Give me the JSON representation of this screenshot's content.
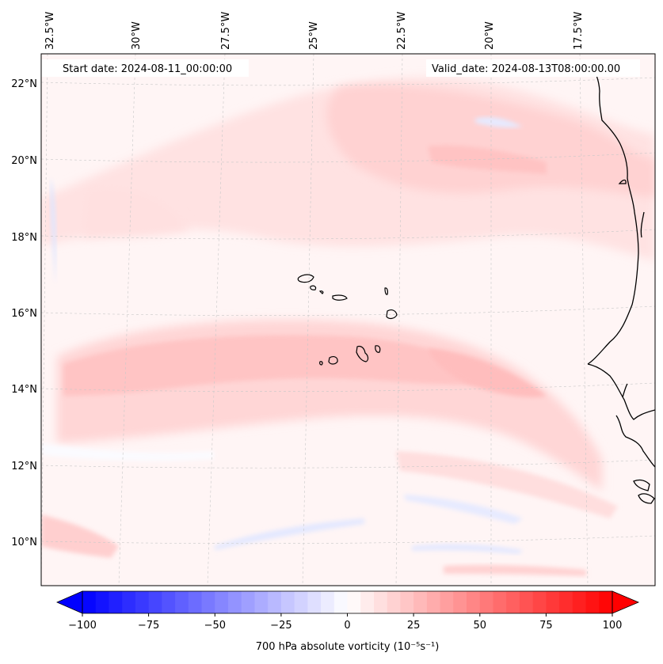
{
  "map": {
    "start_date_label": "Start date: 2024-08-11_00:00:00",
    "valid_date_label": "Valid_date: 2024-08-13T08:00:00.00",
    "lon_labels": [
      "32.5°W",
      "30°W",
      "27.5°W",
      "25°W",
      "22.5°W",
      "20°W",
      "17.5°W"
    ],
    "lat_labels": [
      "22°N",
      "20°N",
      "18°N",
      "16°N",
      "14°N",
      "12°N",
      "10°N"
    ],
    "extent": {
      "lon_min": -32.9,
      "lon_max": -15.6,
      "lat_min": 8.8,
      "lat_max": 22.8
    }
  },
  "colorbar": {
    "label": "700 hPa absolute vorticity (10⁻⁵s⁻¹)",
    "ticks": [
      "−100",
      "−75",
      "−50",
      "−25",
      "0",
      "25",
      "50",
      "75",
      "100"
    ],
    "min": -100,
    "max": 100,
    "step": 5,
    "extend": "both",
    "colormap": "bwr"
  },
  "colors": {
    "negative_end": "#0000ff",
    "positive_end": "#ff0000",
    "center": "#ffffff",
    "coastline": "#000000",
    "gridline": "#c8c8c8"
  }
}
